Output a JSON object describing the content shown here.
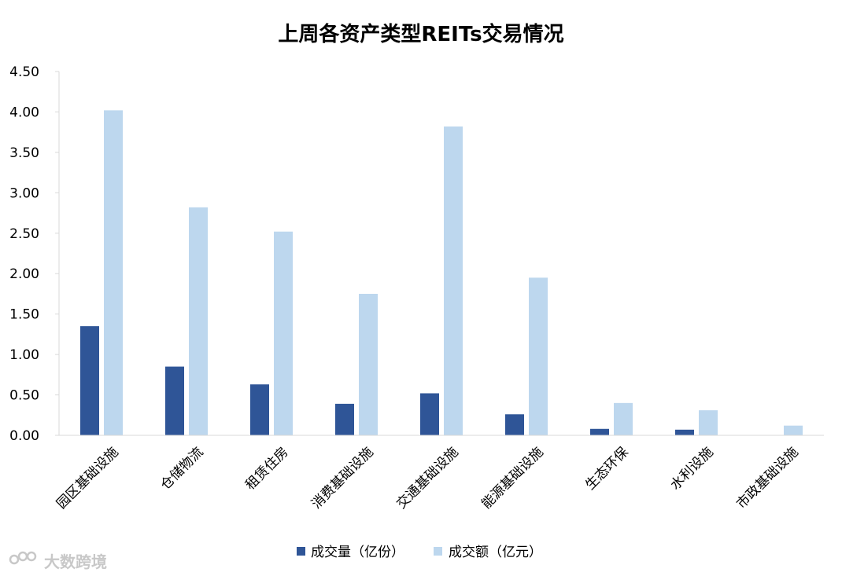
{
  "chart_data": {
    "type": "bar",
    "title": "上周各资产类型REITs交易情况",
    "xlabel": "",
    "ylabel": "",
    "ylim": [
      0,
      4.5
    ],
    "yticks": [
      "0.00",
      "0.50",
      "1.00",
      "1.50",
      "2.00",
      "2.50",
      "3.00",
      "3.50",
      "4.00",
      "4.50"
    ],
    "grid": false,
    "legend_position": "bottom",
    "categories": [
      "园区基础设施",
      "仓储物流",
      "租赁住房",
      "消费基础设施",
      "交通基础设施",
      "能源基础设施",
      "生态环保",
      "水利设施",
      "市政基础设施"
    ],
    "series": [
      {
        "name": "成交量（亿份）",
        "color": "#2F5597",
        "values": [
          1.35,
          0.85,
          0.63,
          0.39,
          0.52,
          0.26,
          0.08,
          0.07,
          0.0
        ]
      },
      {
        "name": "成交额（亿元）",
        "color": "#BDD7EE",
        "values": [
          4.02,
          2.82,
          2.52,
          1.75,
          3.82,
          1.95,
          0.4,
          0.31,
          0.12
        ]
      }
    ]
  },
  "watermark": {
    "text": "大数跨境",
    "icon": "brand-logo-icon"
  }
}
